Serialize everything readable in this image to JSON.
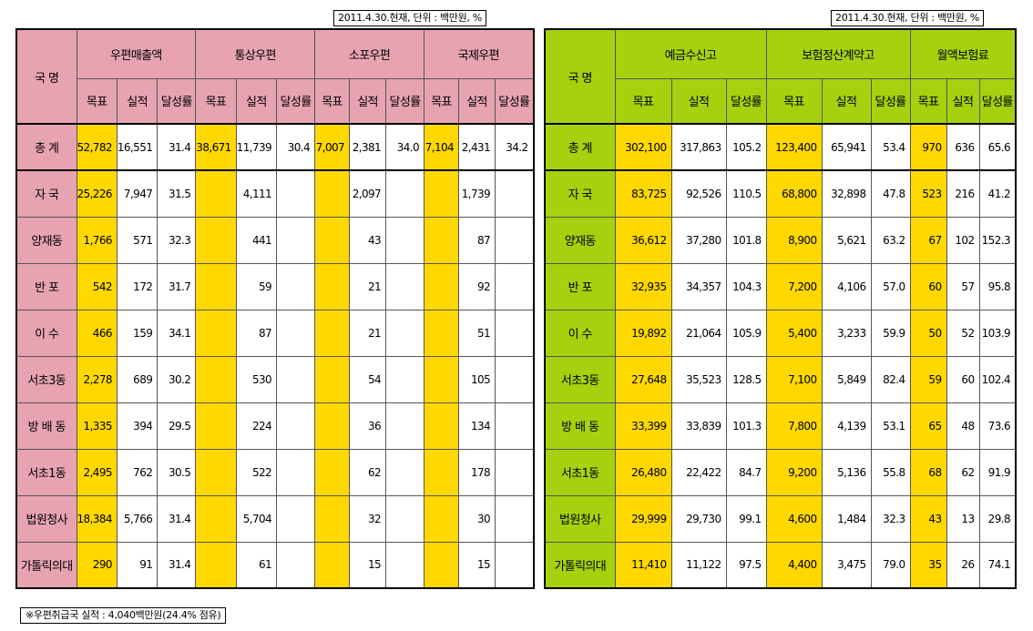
{
  "left": {
    "note": "2011.4.30.현재, 단위 : 백만원, %",
    "office_header": "국  명",
    "groups": [
      "우편매출액",
      "통상우편",
      "소포우편",
      "국제우편"
    ],
    "subheaders": [
      "목표",
      "실적",
      "달성률"
    ],
    "rows": [
      {
        "name": "총  계",
        "cells": [
          "52,782",
          "16,551",
          "31.4",
          "38,671",
          "11,739",
          "30.4",
          "7,007",
          "2,381",
          "34.0",
          "7,104",
          "2,431",
          "34.2"
        ]
      },
      {
        "name": "자  국",
        "cells": [
          "25,226",
          "7,947",
          "31.5",
          "",
          "4,111",
          "",
          "",
          "2,097",
          "",
          "",
          "1,739",
          ""
        ]
      },
      {
        "name": "양재동",
        "cells": [
          "1,766",
          "571",
          "32.3",
          "",
          "441",
          "",
          "",
          "43",
          "",
          "",
          "87",
          ""
        ]
      },
      {
        "name": "반  포",
        "cells": [
          "542",
          "172",
          "31.7",
          "",
          "59",
          "",
          "",
          "21",
          "",
          "",
          "92",
          ""
        ]
      },
      {
        "name": "이  수",
        "cells": [
          "466",
          "159",
          "34.1",
          "",
          "87",
          "",
          "",
          "21",
          "",
          "",
          "51",
          ""
        ]
      },
      {
        "name": "서초3동",
        "cells": [
          "2,278",
          "689",
          "30.2",
          "",
          "530",
          "",
          "",
          "54",
          "",
          "",
          "105",
          ""
        ]
      },
      {
        "name": "방 배 동",
        "cells": [
          "1,335",
          "394",
          "29.5",
          "",
          "224",
          "",
          "",
          "36",
          "",
          "",
          "134",
          ""
        ]
      },
      {
        "name": "서초1동",
        "cells": [
          "2,495",
          "762",
          "30.5",
          "",
          "522",
          "",
          "",
          "62",
          "",
          "",
          "178",
          ""
        ]
      },
      {
        "name": "법원청사",
        "cells": [
          "18,384",
          "5,766",
          "31.4",
          "",
          "5,704",
          "",
          "",
          "32",
          "",
          "",
          "30",
          ""
        ]
      },
      {
        "name": "가톨릭의대",
        "cells": [
          "290",
          "91",
          "31.4",
          "",
          "61",
          "",
          "",
          "15",
          "",
          "",
          "15",
          ""
        ]
      }
    ]
  },
  "right": {
    "note": "2011.4.30.현재, 단위 : 백만원, %",
    "office_header": "국  명",
    "groups": [
      "예금수신고",
      "보험정산계약고",
      "월액보험료"
    ],
    "subheaders": [
      "목표",
      "실적",
      "달성률"
    ],
    "rows": [
      {
        "name": "총  계",
        "cells": [
          "302,100",
          "317,863",
          "105.2",
          "123,400",
          "65,941",
          "53.4",
          "970",
          "636",
          "65.6"
        ]
      },
      {
        "name": "자  국",
        "cells": [
          "83,725",
          "92,526",
          "110.5",
          "68,800",
          "32,898",
          "47.8",
          "523",
          "216",
          "41.2"
        ]
      },
      {
        "name": "양재동",
        "cells": [
          "36,612",
          "37,280",
          "101.8",
          "8,900",
          "5,621",
          "63.2",
          "67",
          "102",
          "152.3"
        ]
      },
      {
        "name": "반  포",
        "cells": [
          "32,935",
          "34,357",
          "104.3",
          "7,200",
          "4,106",
          "57.0",
          "60",
          "57",
          "95.8"
        ]
      },
      {
        "name": "이  수",
        "cells": [
          "19,892",
          "21,064",
          "105.9",
          "5,400",
          "3,233",
          "59.9",
          "50",
          "52",
          "103.9"
        ]
      },
      {
        "name": "서초3동",
        "cells": [
          "27,648",
          "35,523",
          "128.5",
          "7,100",
          "5,849",
          "82.4",
          "59",
          "60",
          "102.4"
        ]
      },
      {
        "name": "방 배 동",
        "cells": [
          "33,399",
          "33,839",
          "101.3",
          "7,800",
          "4,139",
          "53.1",
          "65",
          "48",
          "73.6"
        ]
      },
      {
        "name": "서초1동",
        "cells": [
          "26,480",
          "22,422",
          "84.7",
          "9,200",
          "5,136",
          "55.8",
          "68",
          "62",
          "91.9"
        ]
      },
      {
        "name": "법원청사",
        "cells": [
          "29,999",
          "29,730",
          "99.1",
          "4,600",
          "1,484",
          "32.3",
          "43",
          "13",
          "29.8"
        ]
      },
      {
        "name": "가톨릭의대",
        "cells": [
          "11,410",
          "11,122",
          "97.5",
          "4,400",
          "3,475",
          "79.0",
          "35",
          "26",
          "74.1"
        ]
      }
    ]
  },
  "footer": "※우편취급국 실적 : 4,040백만원(24.4% 점유)",
  "colors": {
    "left_header": "#e7a3b1",
    "right_header": "#a6d10e",
    "target_highlight": "#ffd800",
    "border": "#000000"
  }
}
